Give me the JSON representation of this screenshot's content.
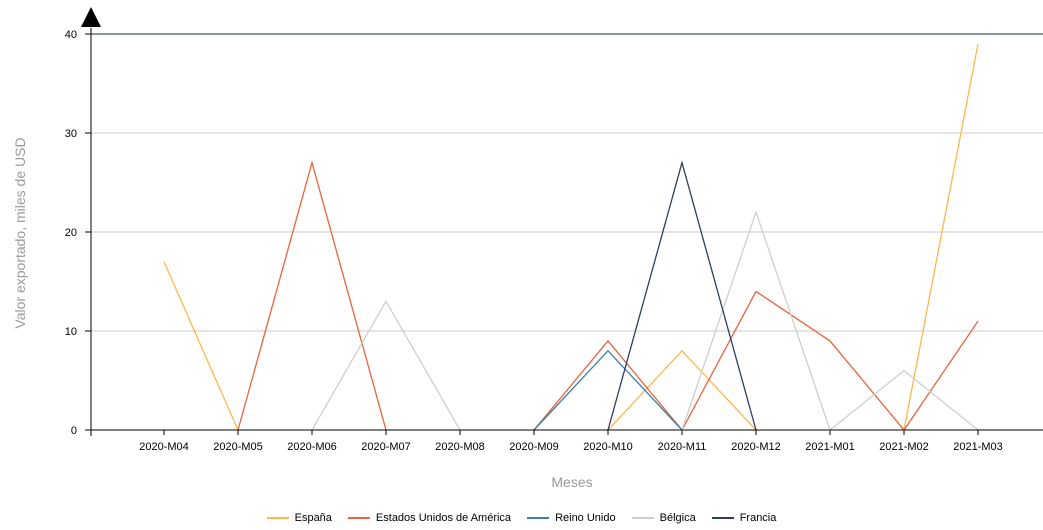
{
  "chart_data": {
    "type": "line",
    "title": "",
    "xlabel": "Meses",
    "ylabel": "Valor exportado, miles de USD",
    "categories": [
      "2020-M04",
      "2020-M05",
      "2020-M06",
      "2020-M07",
      "2020-M08",
      "2020-M09",
      "2020-M10",
      "2020-M11",
      "2020-M12",
      "2021-M01",
      "2021-M02",
      "2021-M03"
    ],
    "yticks": [
      0,
      10,
      20,
      30,
      40
    ],
    "ylim": [
      0,
      40
    ],
    "grid": true,
    "legend_position": "bottom",
    "series": [
      {
        "name": "España",
        "color": "#ffb74d",
        "values": [
          17,
          0,
          null,
          null,
          null,
          null,
          0,
          8,
          0,
          null,
          0,
          39
        ]
      },
      {
        "name": "Estados Unidos de América",
        "color": "#e8643c",
        "values": [
          null,
          0,
          27,
          0,
          null,
          0,
          9,
          0,
          14,
          9,
          0,
          11
        ]
      },
      {
        "name": "Reino Unido",
        "color": "#3d7eaa",
        "values": [
          null,
          null,
          null,
          null,
          null,
          0,
          8,
          0,
          null,
          null,
          null,
          null
        ]
      },
      {
        "name": "Bélgica",
        "color": "#cfcfcf",
        "values": [
          null,
          null,
          0,
          13,
          0,
          null,
          null,
          0,
          22,
          0,
          6,
          0
        ]
      },
      {
        "name": "Francia",
        "color": "#2e3e63",
        "values": [
          null,
          null,
          null,
          null,
          null,
          null,
          0,
          27,
          0,
          null,
          null,
          null
        ]
      }
    ]
  }
}
